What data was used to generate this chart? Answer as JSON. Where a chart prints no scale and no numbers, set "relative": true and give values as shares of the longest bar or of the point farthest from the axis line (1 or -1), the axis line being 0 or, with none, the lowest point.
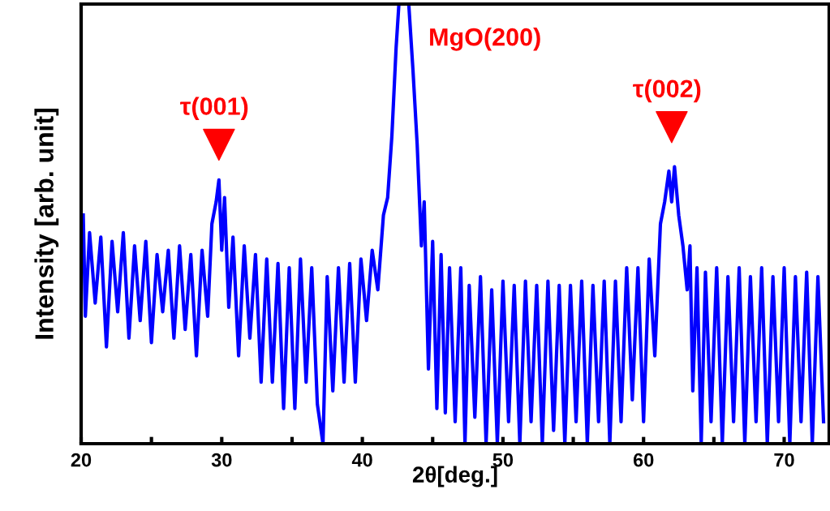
{
  "chart_data": {
    "type": "line",
    "relative": true,
    "xlabel": "2θ[deg.]",
    "ylabel": "Intensity [arb. unit]",
    "xlim": [
      20,
      73.2
    ],
    "xticks": [
      20,
      {
        "value": 25,
        "label": null
      },
      30,
      {
        "value": 35,
        "label": null
      },
      40,
      {
        "value": 45,
        "label": null
      },
      50,
      {
        "value": 55,
        "label": null
      },
      60,
      {
        "value": 65,
        "label": null
      },
      70
    ],
    "tick_labels": "x",
    "grid": false,
    "legend": false,
    "series": [
      {
        "color": "#0000ff",
        "x": [
          20.15,
          20.3,
          20.6,
          21.0,
          21.4,
          21.8,
          22.2,
          22.6,
          23.0,
          23.4,
          23.8,
          24.2,
          24.6,
          25.0,
          25.4,
          25.8,
          26.2,
          26.6,
          27.0,
          27.4,
          27.8,
          28.2,
          28.6,
          29.0,
          29.3,
          29.6,
          29.8,
          30.0,
          30.2,
          30.5,
          30.8,
          31.2,
          31.6,
          32.0,
          32.4,
          32.8,
          33.2,
          33.6,
          34.0,
          34.4,
          34.8,
          35.2,
          35.6,
          36.0,
          36.4,
          36.8,
          37.2,
          37.5,
          37.9,
          38.3,
          38.7,
          39.1,
          39.5,
          39.9,
          40.3,
          40.7,
          41.1,
          41.5,
          41.8,
          42.1,
          42.4,
          42.6,
          43.3,
          43.6,
          43.9,
          44.2,
          44.4,
          44.7,
          45.0,
          45.3,
          45.6,
          45.9,
          46.2,
          46.6,
          47.0,
          47.3,
          47.6,
          48.0,
          48.4,
          48.8,
          49.2,
          49.6,
          50.0,
          50.4,
          50.8,
          51.2,
          51.6,
          52.0,
          52.4,
          52.8,
          53.2,
          53.6,
          54.0,
          54.4,
          54.8,
          55.2,
          55.6,
          56.0,
          56.4,
          56.8,
          57.2,
          57.6,
          58.0,
          58.4,
          58.8,
          59.2,
          59.6,
          60.0,
          60.4,
          60.8,
          61.2,
          61.5,
          61.8,
          62.0,
          62.2,
          62.5,
          62.8,
          63.1,
          63.3,
          63.5,
          63.8,
          64.1,
          64.4,
          64.8,
          65.2,
          65.6,
          66.0,
          66.4,
          66.8,
          67.2,
          67.6,
          68.0,
          68.4,
          68.8,
          69.2,
          69.6,
          70.0,
          70.4,
          70.8,
          71.2,
          71.6,
          72.0,
          72.4,
          72.8
        ],
        "values": [
          0.52,
          0.29,
          0.48,
          0.32,
          0.47,
          0.22,
          0.46,
          0.3,
          0.48,
          0.24,
          0.45,
          0.28,
          0.46,
          0.23,
          0.43,
          0.3,
          0.44,
          0.24,
          0.45,
          0.26,
          0.43,
          0.2,
          0.44,
          0.29,
          0.5,
          0.55,
          0.6,
          0.44,
          0.56,
          0.31,
          0.47,
          0.2,
          0.45,
          0.24,
          0.43,
          0.14,
          0.42,
          0.14,
          0.41,
          0.08,
          0.4,
          0.08,
          0.42,
          0.14,
          0.4,
          0.09,
          0.0,
          0.38,
          0.12,
          0.4,
          0.14,
          0.41,
          0.14,
          0.42,
          0.28,
          0.44,
          0.35,
          0.52,
          0.56,
          0.7,
          0.9,
          1.0,
          1.0,
          0.85,
          0.68,
          0.45,
          0.55,
          0.17,
          0.46,
          0.08,
          0.43,
          0.07,
          0.4,
          0.05,
          0.4,
          0.0,
          0.36,
          0.06,
          0.38,
          0.0,
          0.35,
          0.0,
          0.37,
          0.05,
          0.36,
          0.0,
          0.37,
          0.05,
          0.36,
          0.0,
          0.37,
          0.03,
          0.36,
          0.0,
          0.36,
          0.05,
          0.37,
          0.0,
          0.36,
          0.05,
          0.37,
          0.0,
          0.37,
          0.05,
          0.4,
          0.1,
          0.4,
          0.05,
          0.42,
          0.2,
          0.5,
          0.55,
          0.62,
          0.55,
          0.63,
          0.52,
          0.45,
          0.35,
          0.45,
          0.12,
          0.4,
          0.0,
          0.39,
          0.05,
          0.4,
          0.0,
          0.38,
          0.05,
          0.4,
          0.0,
          0.38,
          0.05,
          0.4,
          0.0,
          0.38,
          0.05,
          0.4,
          0.0,
          0.38,
          0.05,
          0.39,
          0.0,
          0.38,
          0.05
        ]
      }
    ],
    "annotations": [
      {
        "text": "τ(001)",
        "x": 29.8,
        "y": 0.68
      },
      {
        "text": "MgO(200)",
        "x": 43.4,
        "y": 0.92
      },
      {
        "text": "τ(002)",
        "x": 62.0,
        "y": 0.72
      }
    ]
  }
}
